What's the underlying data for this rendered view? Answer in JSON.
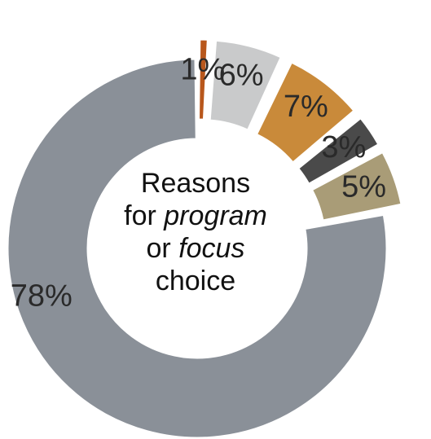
{
  "chart_data": {
    "type": "pie",
    "variant": "donut-exploded",
    "center_title": {
      "line1": "Reasons",
      "line2_prefix": "for",
      "line2_italic": "program",
      "line3_prefix": "or",
      "line3_italic": "focus",
      "line4": "choice"
    },
    "slices": [
      {
        "value": 1,
        "label": "1%",
        "color": "#b8571c"
      },
      {
        "value": 6,
        "label": "6%",
        "color": "#c9cacb"
      },
      {
        "value": 7,
        "label": "7%",
        "color": "#c98a3a"
      },
      {
        "value": 3,
        "label": "3%",
        "color": "#4a4a4a"
      },
      {
        "value": 5,
        "label": "5%",
        "color": "#a99c77"
      },
      {
        "value": 78,
        "label": "78%",
        "color": "#8a9098"
      }
    ]
  }
}
